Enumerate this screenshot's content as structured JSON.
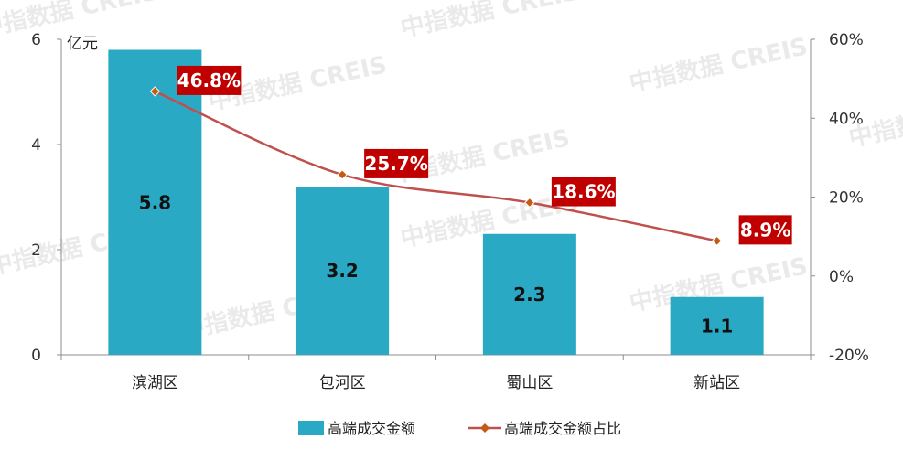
{
  "chart_data": {
    "type": "bar",
    "categories": [
      "滨湖区",
      "包河区",
      "蜀山区",
      "新站区"
    ],
    "series": [
      {
        "name": "高端成交金额",
        "type": "bar",
        "axis": "left",
        "values": [
          5.8,
          3.2,
          2.3,
          1.1
        ],
        "labels": [
          "5.8",
          "3.2",
          "2.3",
          "1.1"
        ],
        "color": "#2aa9c4"
      },
      {
        "name": "高端成交金额占比",
        "type": "line",
        "axis": "right",
        "values": [
          46.8,
          25.7,
          18.6,
          8.9
        ],
        "labels": [
          "46.8%",
          "25.7%",
          "18.6%",
          "8.9%"
        ],
        "color": "#c0504d",
        "marker_color": "#c55a11"
      }
    ],
    "y_left": {
      "unit": "亿元",
      "ylim": [
        0,
        6
      ],
      "ticks": [
        "0",
        "2",
        "4",
        "6"
      ]
    },
    "y_right": {
      "ylim": [
        -20,
        60
      ],
      "ticks": [
        "-20%",
        "0%",
        "20%",
        "40%",
        "60%"
      ]
    },
    "label_box_color": "#c00000",
    "legend_position": "bottom",
    "watermark": "中指数据 CREIS",
    "grid": false
  }
}
